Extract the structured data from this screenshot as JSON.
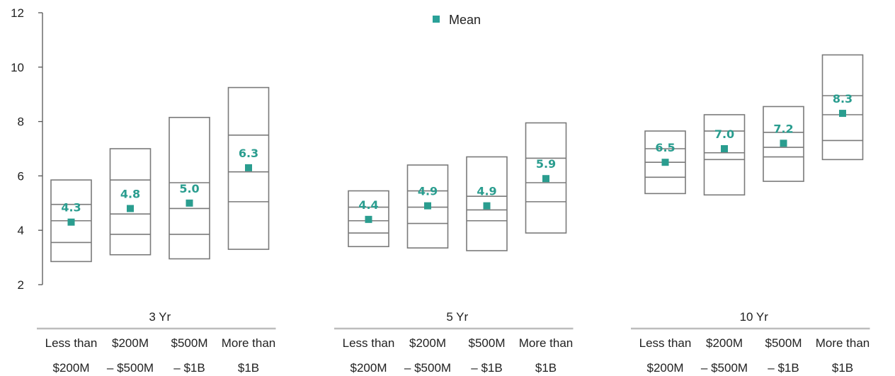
{
  "chart_data": {
    "type": "box",
    "legend": {
      "label": "Mean",
      "color": "#2aa198",
      "placement": "top-center"
    },
    "colors": {
      "box": "#7a7a7a",
      "mean": "#2a9d8f",
      "axis": "#555555"
    },
    "yaxis": {
      "min": 2,
      "max": 12,
      "ticks": [
        2,
        4,
        6,
        8,
        10,
        12
      ]
    },
    "groups": [
      {
        "label": "3 Yr",
        "categories": [
          {
            "line1": "Less than",
            "line2": "$200M",
            "max": 5.85,
            "p75": 4.95,
            "median": 4.35,
            "p25": 3.55,
            "min": 2.85,
            "mean": 4.3,
            "mean_label": "4.3"
          },
          {
            "line1": "$200M",
            "line2": "– $500M",
            "max": 7.0,
            "p75": 5.85,
            "median": 4.6,
            "p25": 3.85,
            "min": 3.1,
            "mean": 4.8,
            "mean_label": "4.8"
          },
          {
            "line1": "$500M",
            "line2": "– $1B",
            "max": 8.15,
            "p75": 5.75,
            "median": 4.8,
            "p25": 3.85,
            "min": 2.95,
            "mean": 5.0,
            "mean_label": "5.0"
          },
          {
            "line1": "More than",
            "line2": "$1B",
            "max": 9.25,
            "p75": 7.5,
            "median": 6.15,
            "p25": 5.05,
            "min": 3.3,
            "mean": 6.3,
            "mean_label": "6.3"
          }
        ]
      },
      {
        "label": "5 Yr",
        "categories": [
          {
            "line1": "Less than",
            "line2": "$200M",
            "max": 5.45,
            "p75": 4.85,
            "median": 4.35,
            "p25": 3.9,
            "min": 3.4,
            "mean": 4.4,
            "mean_label": "4.4"
          },
          {
            "line1": "$200M",
            "line2": "– $500M",
            "max": 6.4,
            "p75": 5.45,
            "median": 4.85,
            "p25": 4.25,
            "min": 3.35,
            "mean": 4.9,
            "mean_label": "4.9"
          },
          {
            "line1": "$500M",
            "line2": "– $1B",
            "max": 6.7,
            "p75": 5.25,
            "median": 4.75,
            "p25": 4.35,
            "min": 3.25,
            "mean": 4.9,
            "mean_label": "4.9"
          },
          {
            "line1": "More than",
            "line2": "$1B",
            "max": 7.95,
            "p75": 6.65,
            "median": 5.75,
            "p25": 5.05,
            "min": 3.9,
            "mean": 5.9,
            "mean_label": "5.9"
          }
        ]
      },
      {
        "label": "10 Yr",
        "categories": [
          {
            "line1": "Less than",
            "line2": "$200M",
            "max": 7.65,
            "p75": 7.0,
            "median": 6.5,
            "p25": 5.95,
            "min": 5.35,
            "mean": 6.5,
            "mean_label": "6.5"
          },
          {
            "line1": "$200M",
            "line2": "– $500M",
            "max": 8.25,
            "p75": 7.65,
            "median": 6.85,
            "p25": 6.6,
            "min": 5.3,
            "mean": 7.0,
            "mean_label": "7.0"
          },
          {
            "line1": "$500M",
            "line2": "– $1B",
            "max": 8.55,
            "p75": 7.6,
            "median": 7.05,
            "p25": 6.7,
            "min": 5.8,
            "mean": 7.2,
            "mean_label": "7.2"
          },
          {
            "line1": "More than",
            "line2": "$1B",
            "max": 10.45,
            "p75": 8.95,
            "median": 8.25,
            "p25": 7.3,
            "min": 6.6,
            "mean": 8.3,
            "mean_label": "8.3"
          }
        ]
      }
    ]
  }
}
